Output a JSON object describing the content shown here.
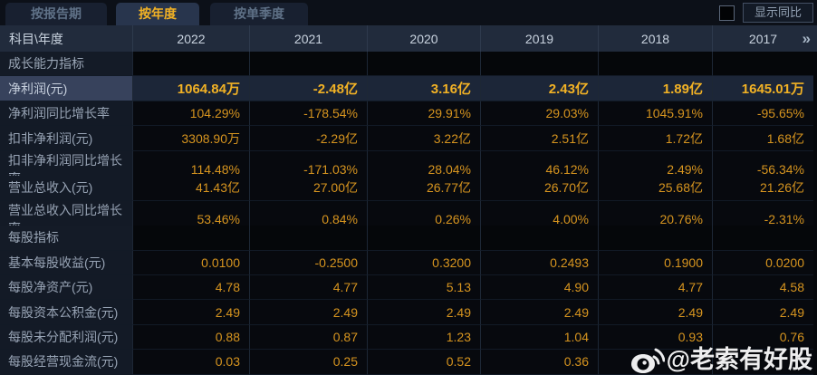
{
  "tabs": [
    {
      "label": "按报告期",
      "active": false
    },
    {
      "label": "按年度",
      "active": true
    },
    {
      "label": "按单季度",
      "active": false
    }
  ],
  "controls": {
    "show_yoy_label": "显示同比"
  },
  "table": {
    "corner_label": "科目\\年度",
    "years": [
      "2022",
      "2021",
      "2020",
      "2019",
      "2018",
      "2017"
    ],
    "more_icon": "»",
    "rows": [
      {
        "type": "section",
        "label": "成长能力指标"
      },
      {
        "type": "data",
        "label": "净利润(元)",
        "highlight": true,
        "values": [
          "1064.84万",
          "-2.48亿",
          "3.16亿",
          "2.43亿",
          "1.89亿",
          "1645.01万"
        ]
      },
      {
        "type": "data",
        "label": "净利润同比增长率",
        "values": [
          "104.29%",
          "-178.54%",
          "29.91%",
          "29.03%",
          "1045.91%",
          "-95.65%"
        ]
      },
      {
        "type": "data",
        "label": "扣非净利润(元)",
        "values": [
          "3308.90万",
          "-2.29亿",
          "3.22亿",
          "2.51亿",
          "1.72亿",
          "1.68亿"
        ]
      },
      {
        "type": "data",
        "label": "扣非净利润同比增长率",
        "values": [
          "114.48%",
          "-171.03%",
          "28.04%",
          "46.12%",
          "2.49%",
          "-56.34%"
        ]
      },
      {
        "type": "data",
        "label": "营业总收入(元)",
        "values": [
          "41.43亿",
          "27.00亿",
          "26.77亿",
          "26.70亿",
          "25.68亿",
          "21.26亿"
        ]
      },
      {
        "type": "data",
        "label": "营业总收入同比增长率",
        "values": [
          "53.46%",
          "0.84%",
          "0.26%",
          "4.00%",
          "20.76%",
          "-2.31%"
        ]
      },
      {
        "type": "section",
        "label": "每股指标"
      },
      {
        "type": "data",
        "label": "基本每股收益(元)",
        "values": [
          "0.0100",
          "-0.2500",
          "0.3200",
          "0.2493",
          "0.1900",
          "0.0200"
        ]
      },
      {
        "type": "data",
        "label": "每股净资产(元)",
        "values": [
          "4.78",
          "4.77",
          "5.13",
          "4.90",
          "4.77",
          "4.58"
        ]
      },
      {
        "type": "data",
        "label": "每股资本公积金(元)",
        "values": [
          "2.49",
          "2.49",
          "2.49",
          "2.49",
          "2.49",
          "2.49"
        ]
      },
      {
        "type": "data",
        "label": "每股未分配利润(元)",
        "values": [
          "0.88",
          "0.87",
          "1.23",
          "1.04",
          "0.93",
          "0.76"
        ]
      },
      {
        "type": "data",
        "label": "每股经营现金流(元)",
        "values": [
          "0.03",
          "0.25",
          "0.52",
          "0.36",
          "",
          ""
        ]
      }
    ]
  },
  "watermark": {
    "icon": "weibo-icon",
    "text": "@老索有好股"
  },
  "colors": {
    "accent": "#f2b225",
    "value-text": "#d6941f",
    "tab-active-text": "#f6c322",
    "header-bg": "#212b3c",
    "label-bg": "#131a26",
    "highlight-label-bg": "#37425c",
    "highlight-value-bg": "#1c2638"
  }
}
